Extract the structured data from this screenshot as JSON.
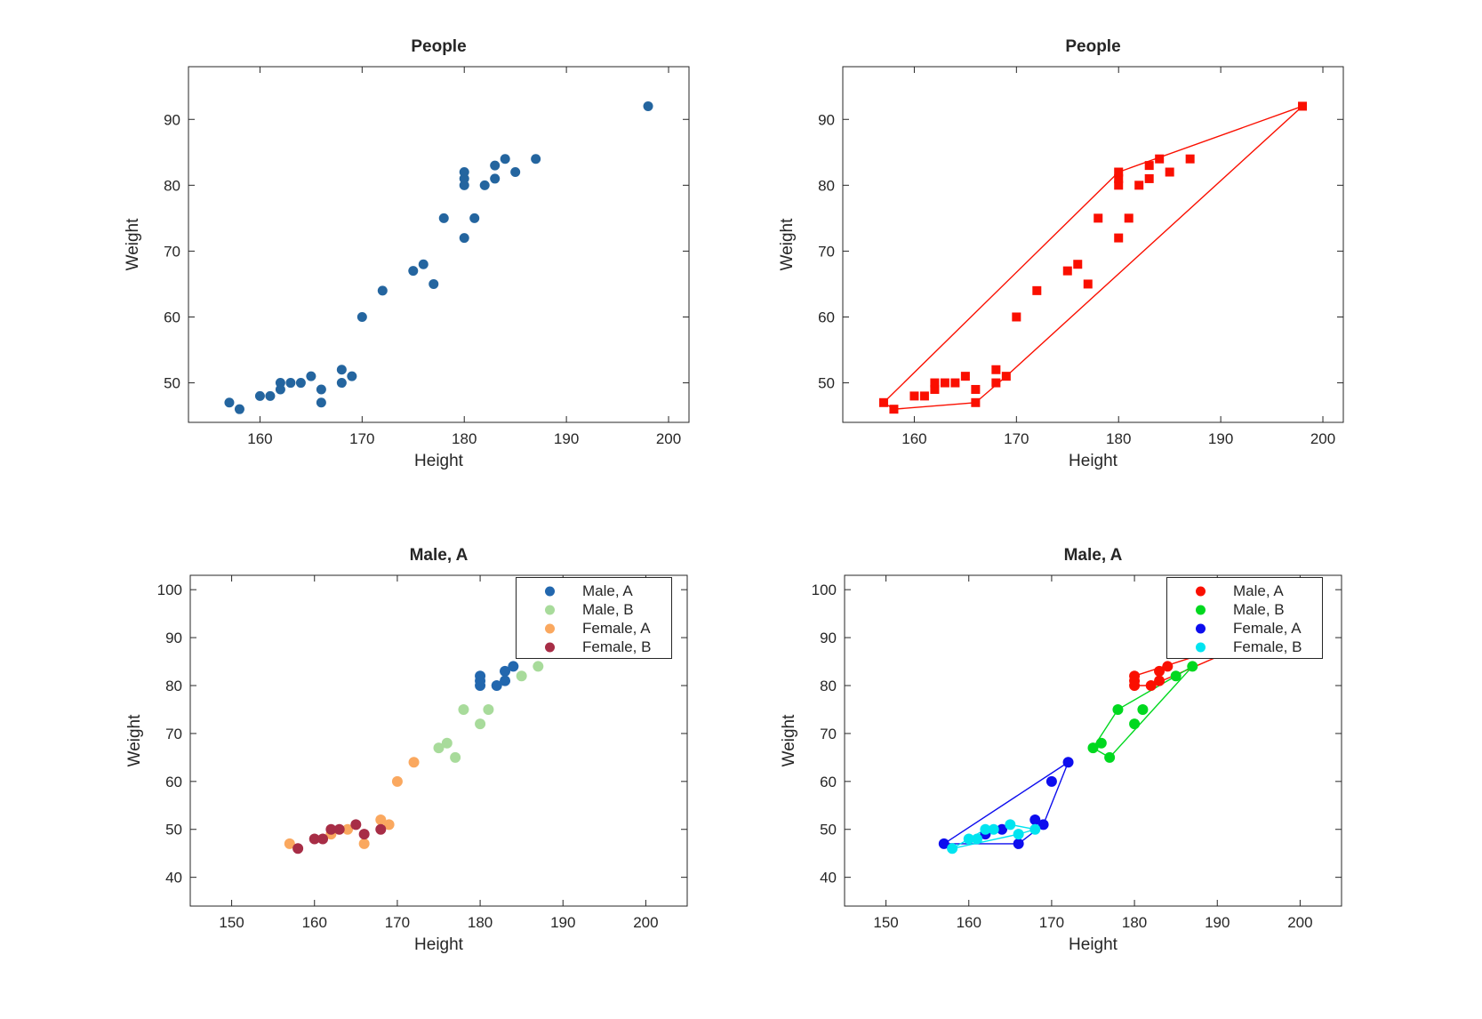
{
  "figure": {
    "background": "#ffffff",
    "axis_color": "#262626"
  },
  "chart_data": [
    {
      "type": "scatter",
      "title": "People",
      "xlabel": "Height",
      "ylabel": "Weight",
      "xlim": [
        153,
        202
      ],
      "ylim": [
        44,
        98
      ],
      "xticks": [
        160,
        170,
        180,
        190,
        200
      ],
      "yticks": [
        50,
        60,
        70,
        80,
        90
      ],
      "grid": false,
      "legend": null,
      "series": [
        {
          "name": "People",
          "color": "#24659F",
          "marker": "circle",
          "marker_size": 11,
          "hull": null,
          "points": [
            [
              157,
              47
            ],
            [
              158,
              46
            ],
            [
              160,
              48
            ],
            [
              161,
              48
            ],
            [
              162,
              49
            ],
            [
              162,
              50
            ],
            [
              163,
              50
            ],
            [
              164,
              50
            ],
            [
              165,
              51
            ],
            [
              166,
              47
            ],
            [
              166,
              49
            ],
            [
              168,
              50
            ],
            [
              168,
              52
            ],
            [
              169,
              51
            ],
            [
              170,
              60
            ],
            [
              172,
              64
            ],
            [
              175,
              67
            ],
            [
              176,
              68
            ],
            [
              177,
              65
            ],
            [
              178,
              75
            ],
            [
              180,
              72
            ],
            [
              180,
              80
            ],
            [
              180,
              81
            ],
            [
              180,
              82
            ],
            [
              181,
              75
            ],
            [
              182,
              80
            ],
            [
              183,
              81
            ],
            [
              183,
              83
            ],
            [
              184,
              84
            ],
            [
              185,
              82
            ],
            [
              187,
              84
            ],
            [
              198,
              92
            ]
          ]
        }
      ]
    },
    {
      "type": "scatter",
      "title": "People",
      "xlabel": "Height",
      "ylabel": "Weight",
      "xlim": [
        153,
        202
      ],
      "ylim": [
        44,
        98
      ],
      "xticks": [
        160,
        170,
        180,
        190,
        200
      ],
      "yticks": [
        50,
        60,
        70,
        80,
        90
      ],
      "grid": false,
      "legend": null,
      "series": [
        {
          "name": "People",
          "color": "#FA0F00",
          "marker": "square",
          "marker_size": 10,
          "hull": [
            [
              157,
              47
            ],
            [
              158,
              46
            ],
            [
              166,
              47
            ],
            [
              169,
              51
            ],
            [
              198,
              92
            ],
            [
              180,
              82
            ]
          ],
          "points": [
            [
              157,
              47
            ],
            [
              158,
              46
            ],
            [
              160,
              48
            ],
            [
              161,
              48
            ],
            [
              162,
              49
            ],
            [
              162,
              50
            ],
            [
              163,
              50
            ],
            [
              164,
              50
            ],
            [
              165,
              51
            ],
            [
              166,
              47
            ],
            [
              166,
              49
            ],
            [
              168,
              50
            ],
            [
              168,
              52
            ],
            [
              169,
              51
            ],
            [
              170,
              60
            ],
            [
              172,
              64
            ],
            [
              175,
              67
            ],
            [
              176,
              68
            ],
            [
              177,
              65
            ],
            [
              178,
              75
            ],
            [
              180,
              72
            ],
            [
              180,
              80
            ],
            [
              180,
              81
            ],
            [
              180,
              82
            ],
            [
              181,
              75
            ],
            [
              182,
              80
            ],
            [
              183,
              81
            ],
            [
              183,
              83
            ],
            [
              184,
              84
            ],
            [
              185,
              82
            ],
            [
              187,
              84
            ],
            [
              198,
              92
            ]
          ]
        }
      ]
    },
    {
      "type": "scatter",
      "title": "Male, A",
      "xlabel": "Height",
      "ylabel": "Weight",
      "xlim": [
        145,
        205
      ],
      "ylim": [
        34,
        103
      ],
      "xticks": [
        150,
        160,
        170,
        180,
        190,
        200
      ],
      "yticks": [
        40,
        50,
        60,
        70,
        80,
        90,
        100
      ],
      "grid": false,
      "legend": {
        "position": "northeast"
      },
      "series": [
        {
          "name": "Male, A",
          "color": "#2267AE",
          "marker": "circle",
          "marker_size": 12,
          "hull": null,
          "points": [
            [
              180,
              80
            ],
            [
              180,
              81
            ],
            [
              180,
              82
            ],
            [
              182,
              80
            ],
            [
              183,
              81
            ],
            [
              183,
              83
            ],
            [
              184,
              84
            ],
            [
              198,
              92
            ]
          ]
        },
        {
          "name": "Male, B",
          "color": "#A8DB9B",
          "marker": "circle",
          "marker_size": 12,
          "hull": null,
          "points": [
            [
              175,
              67
            ],
            [
              176,
              68
            ],
            [
              177,
              65
            ],
            [
              178,
              75
            ],
            [
              180,
              72
            ],
            [
              181,
              75
            ],
            [
              185,
              82
            ],
            [
              187,
              84
            ]
          ]
        },
        {
          "name": "Female, A",
          "color": "#FAA85F",
          "marker": "circle",
          "marker_size": 12,
          "hull": null,
          "points": [
            [
              157,
              47
            ],
            [
              162,
              49
            ],
            [
              164,
              50
            ],
            [
              166,
              47
            ],
            [
              168,
              52
            ],
            [
              169,
              51
            ],
            [
              170,
              60
            ],
            [
              172,
              64
            ]
          ]
        },
        {
          "name": "Female, B",
          "color": "#A72D46",
          "marker": "circle",
          "marker_size": 12,
          "hull": null,
          "points": [
            [
              158,
              46
            ],
            [
              160,
              48
            ],
            [
              161,
              48
            ],
            [
              162,
              50
            ],
            [
              163,
              50
            ],
            [
              165,
              51
            ],
            [
              166,
              49
            ],
            [
              168,
              50
            ]
          ]
        }
      ]
    },
    {
      "type": "scatter",
      "title": "Male, A",
      "xlabel": "Height",
      "ylabel": "Weight",
      "xlim": [
        145,
        205
      ],
      "ylim": [
        34,
        103
      ],
      "xticks": [
        150,
        160,
        170,
        180,
        190,
        200
      ],
      "yticks": [
        40,
        50,
        60,
        70,
        80,
        90,
        100
      ],
      "grid": false,
      "legend": {
        "position": "northeast"
      },
      "series": [
        {
          "name": "Male, A",
          "color": "#FA0F00",
          "marker": "circle",
          "marker_size": 12,
          "hull": [
            [
              180,
              80
            ],
            [
              182,
              80
            ],
            [
              198,
              92
            ],
            [
              180,
              82
            ]
          ],
          "points": [
            [
              180,
              80
            ],
            [
              180,
              81
            ],
            [
              180,
              82
            ],
            [
              182,
              80
            ],
            [
              183,
              81
            ],
            [
              183,
              83
            ],
            [
              184,
              84
            ],
            [
              198,
              92
            ]
          ]
        },
        {
          "name": "Male, B",
          "color": "#00D81F",
          "marker": "circle",
          "marker_size": 12,
          "hull": [
            [
              175,
              67
            ],
            [
              177,
              65
            ],
            [
              187,
              84
            ],
            [
              178,
              75
            ]
          ],
          "points": [
            [
              175,
              67
            ],
            [
              176,
              68
            ],
            [
              177,
              65
            ],
            [
              178,
              75
            ],
            [
              180,
              72
            ],
            [
              181,
              75
            ],
            [
              185,
              82
            ],
            [
              187,
              84
            ]
          ]
        },
        {
          "name": "Female, A",
          "color": "#0D0DEE",
          "marker": "circle",
          "marker_size": 12,
          "hull": [
            [
              157,
              47
            ],
            [
              166,
              47
            ],
            [
              169,
              51
            ],
            [
              172,
              64
            ]
          ],
          "points": [
            [
              157,
              47
            ],
            [
              162,
              49
            ],
            [
              164,
              50
            ],
            [
              166,
              47
            ],
            [
              168,
              52
            ],
            [
              169,
              51
            ],
            [
              170,
              60
            ],
            [
              172,
              64
            ]
          ]
        },
        {
          "name": "Female, B",
          "color": "#00E4F0",
          "marker": "circle",
          "marker_size": 12,
          "hull": [
            [
              158,
              46
            ],
            [
              166,
              49
            ],
            [
              168,
              50
            ],
            [
              165,
              51
            ],
            [
              162,
              50
            ]
          ],
          "points": [
            [
              158,
              46
            ],
            [
              160,
              48
            ],
            [
              161,
              48
            ],
            [
              162,
              50
            ],
            [
              163,
              50
            ],
            [
              165,
              51
            ],
            [
              166,
              49
            ],
            [
              168,
              50
            ]
          ]
        }
      ]
    }
  ]
}
